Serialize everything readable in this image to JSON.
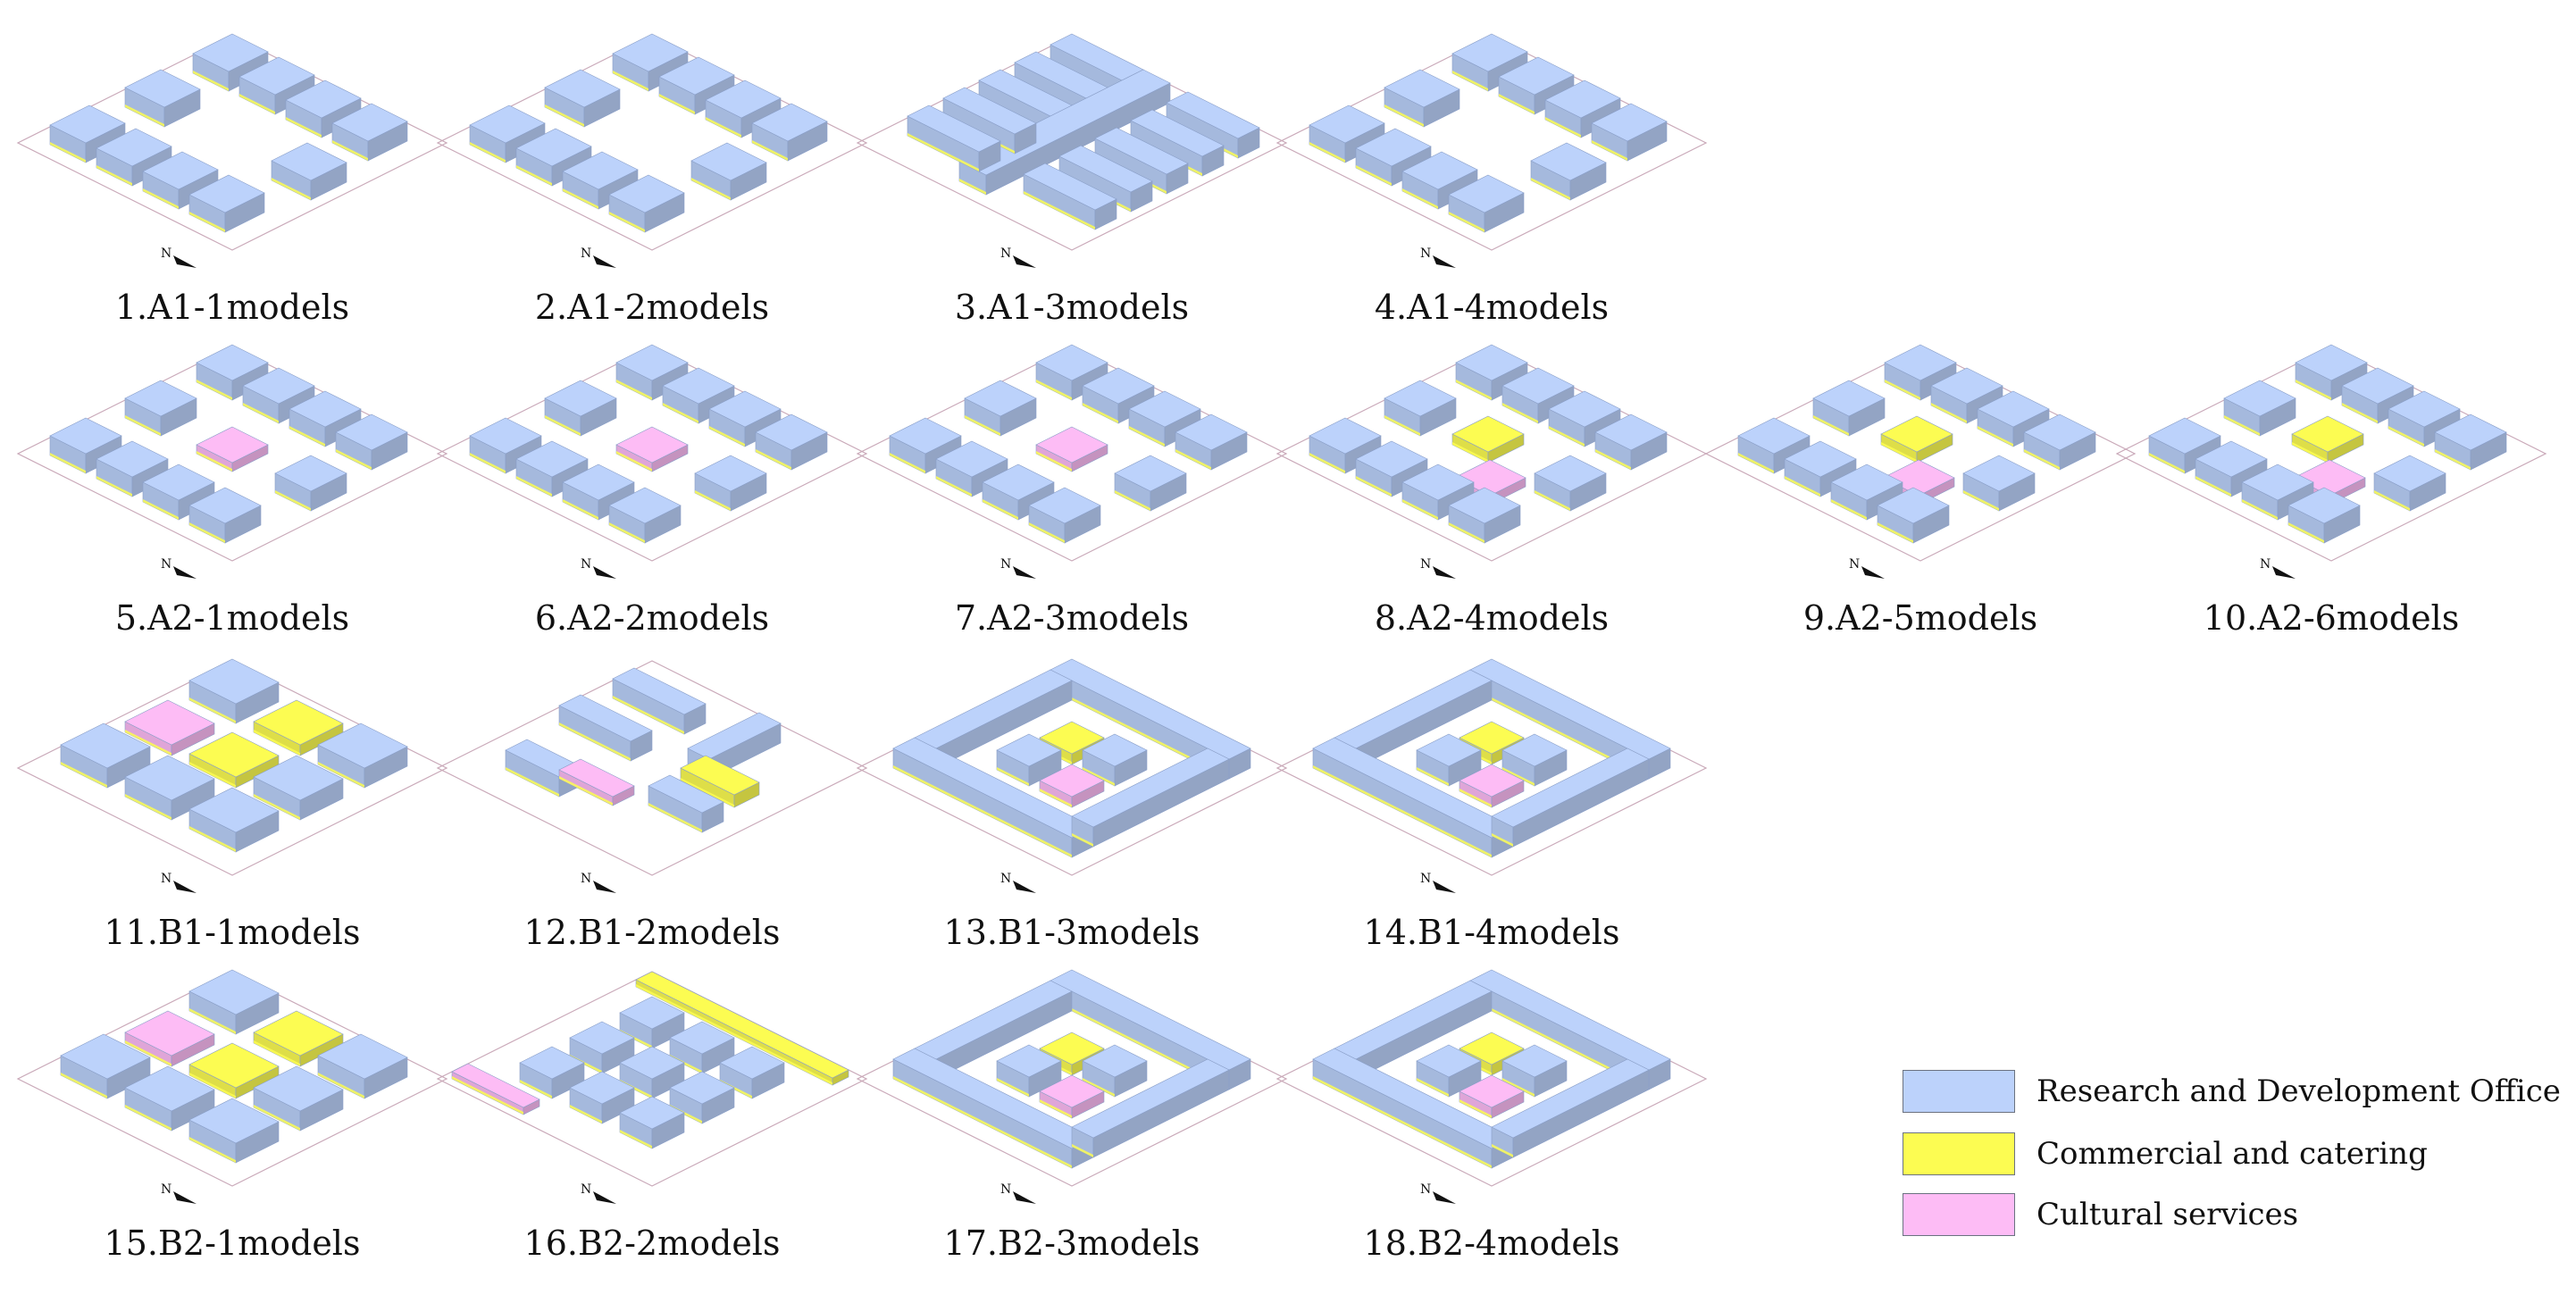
{
  "colors": {
    "rd_office": "#bcd2fb",
    "commercial": "#fcfc52",
    "cultural": "#fdbcf5"
  },
  "panels": [
    {
      "caption": "1.A1-1models",
      "layout": "ring",
      "mix": "rd"
    },
    {
      "caption": "2.A1-2models",
      "layout": "ring-sparse",
      "mix": "rd"
    },
    {
      "caption": "3.A1-3models",
      "layout": "bars",
      "mix": "rd"
    },
    {
      "caption": "4.A1-4models",
      "layout": "ring",
      "mix": "rd"
    },
    {
      "caption": "5.A2-1models",
      "layout": "ring-core",
      "mix": "rd+cultural"
    },
    {
      "caption": "6.A2-2models",
      "layout": "bars-core",
      "mix": "rd+cultural"
    },
    {
      "caption": "7.A2-3models",
      "layout": "courts-core",
      "mix": "rd+cultural"
    },
    {
      "caption": "8.A2-4models",
      "layout": "ring-core2",
      "mix": "rd+commercial+cultural"
    },
    {
      "caption": "9.A2-5models",
      "layout": "bars-core2",
      "mix": "rd+commercial+cultural"
    },
    {
      "caption": "10.A2-6models",
      "layout": "courts-core2",
      "mix": "rd+commercial+cultural"
    },
    {
      "caption": "11.B1-1models",
      "layout": "grid",
      "mix": "rd+commercial+cultural"
    },
    {
      "caption": "12.B1-2models",
      "layout": "scatter",
      "mix": "rd+commercial+cultural"
    },
    {
      "caption": "13.B1-3models",
      "layout": "courts-center",
      "mix": "rd+commercial+cultural"
    },
    {
      "caption": "14.B1-4models",
      "layout": "courts-mixed",
      "mix": "rd+commercial+cultural"
    },
    {
      "caption": "15.B2-1models",
      "layout": "grid-corner",
      "mix": "rd+commercial+cultural"
    },
    {
      "caption": "16.B2-2models",
      "layout": "edge",
      "mix": "rd+commercial+cultural"
    },
    {
      "caption": "17.B2-3models",
      "layout": "courts-podium",
      "mix": "rd+commercial+cultural"
    },
    {
      "caption": "18.B2-4models",
      "layout": "courts-podium2",
      "mix": "rd+commercial+cultural"
    }
  ],
  "legend": [
    {
      "label": "Research and Development Office",
      "color": "#bcd2fb"
    },
    {
      "label": "Commercial and catering",
      "color": "#fcfc52"
    },
    {
      "label": "Cultural services",
      "color": "#fdbcf5"
    }
  ],
  "north_label": "N"
}
